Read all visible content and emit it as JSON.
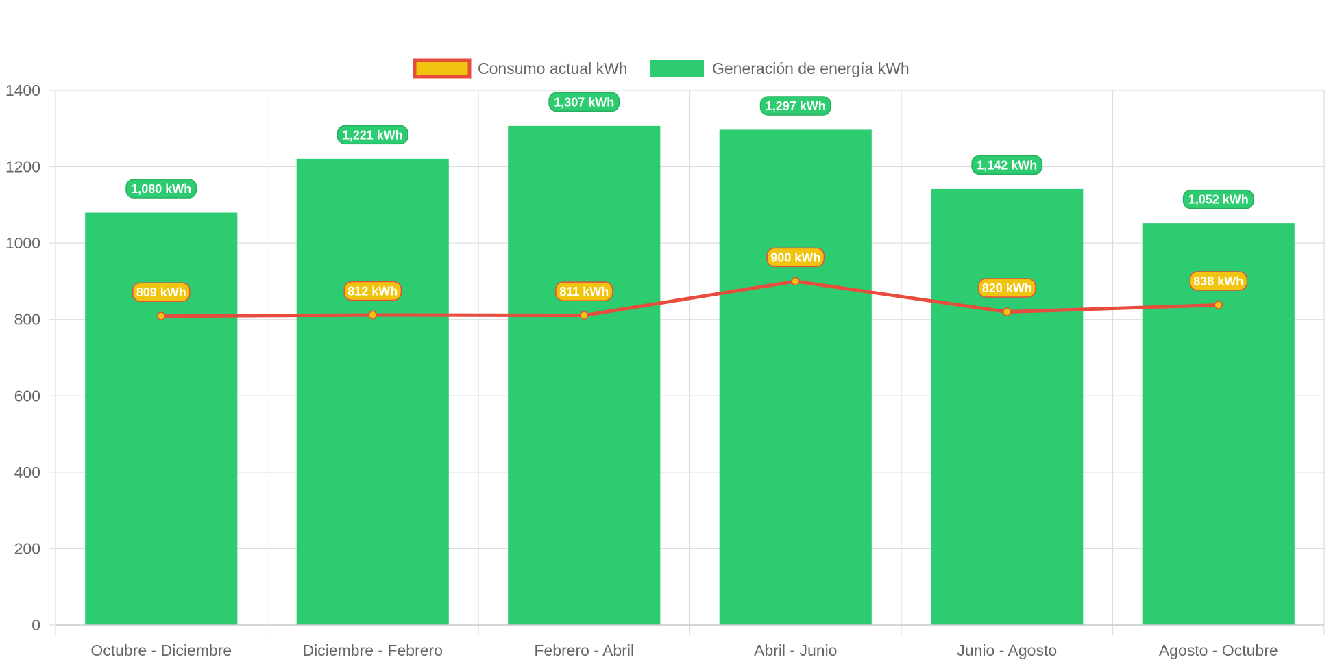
{
  "colors": {
    "bar_fill": "#2ecc71",
    "bar_label_bg": "#2ecc71",
    "bar_label_border": "#27ae60",
    "line_stroke": "#e74c3c",
    "line_point_fill": "#f1c40f",
    "line_label_bg": "#f1c40f",
    "line_label_border": "#e74c3c",
    "grid": "#dddddd",
    "axis_text": "#666666"
  },
  "chart_data": {
    "type": "bar",
    "categories": [
      "Octubre - Diciembre",
      "Diciembre - Febrero",
      "Febrero - Abril",
      "Abril - Junio",
      "Junio - Agosto",
      "Agosto - Octubre"
    ],
    "series": [
      {
        "name": "Consumo actual kWh",
        "type": "line",
        "values": [
          809,
          812,
          811,
          900,
          820,
          838
        ],
        "data_labels": [
          "809 kWh",
          "812 kWh",
          "811 kWh",
          "900 kWh",
          "820 kWh",
          "838 kWh"
        ]
      },
      {
        "name": "Generación de energía kWh",
        "type": "bar",
        "values": [
          1080,
          1221,
          1307,
          1297,
          1142,
          1052
        ],
        "data_labels": [
          "1,080 kWh",
          "1,221 kWh",
          "1,307 kWh",
          "1,297 kWh",
          "1,142 kWh",
          "1,052 kWh"
        ]
      }
    ],
    "y_ticks": [
      "0",
      "200",
      "400",
      "600",
      "800",
      "1000",
      "1200",
      "1400"
    ],
    "ylim": [
      0,
      1400
    ],
    "grid": true,
    "legend_position": "top"
  }
}
